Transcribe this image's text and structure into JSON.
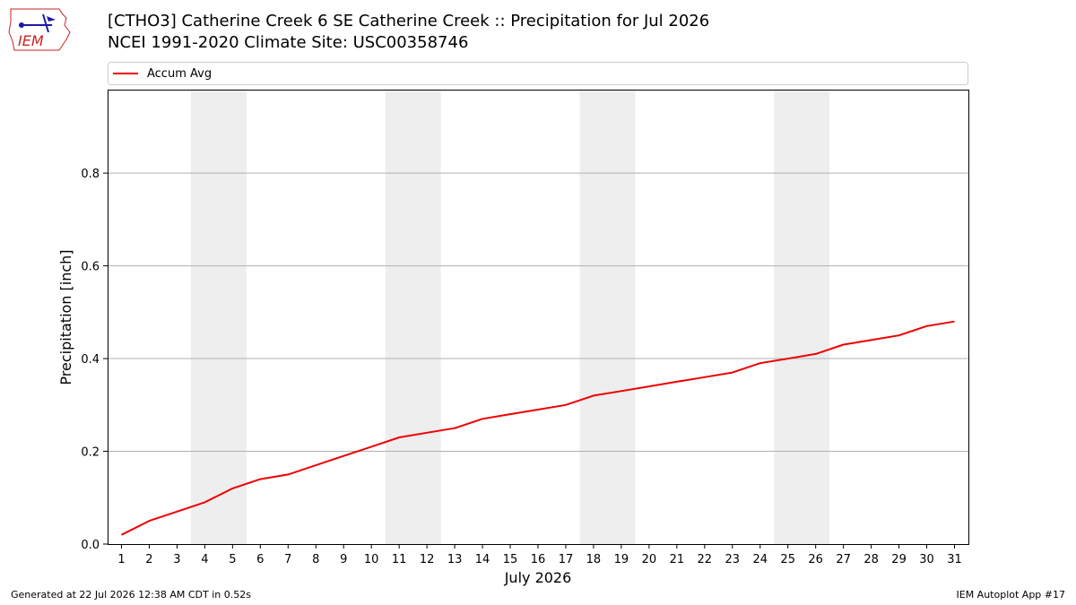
{
  "header": {
    "title_line1": "[CTHO3] Catherine Creek 6 SE Catherine Creek :: Precipitation for Jul 2026",
    "title_line2": "NCEI 1991-2020 Climate Site: USC00358746"
  },
  "logo": {
    "text": "IEM",
    "icon": "iem-weather-station-logo"
  },
  "footer": {
    "generated": "Generated at 22 Jul 2026 12:38 AM CDT in 0.52s",
    "app": "IEM Autoplot App #17"
  },
  "colors": {
    "series": "#ee0000",
    "weekend_band": "#eeeeee",
    "grid": "#b0b0b0",
    "logo": "#cc2222"
  },
  "chart_data": {
    "type": "line",
    "xlabel": "July 2026",
    "ylabel": "Precipitation [inch]",
    "x": [
      1,
      2,
      3,
      4,
      5,
      6,
      7,
      8,
      9,
      10,
      11,
      12,
      13,
      14,
      15,
      16,
      17,
      18,
      19,
      20,
      21,
      22,
      23,
      24,
      25,
      26,
      27,
      28,
      29,
      30,
      31
    ],
    "xlim": [
      0.5,
      31.5
    ],
    "ylim": [
      0,
      0.98
    ],
    "yticks": [
      0.0,
      0.2,
      0.4,
      0.6,
      0.8
    ],
    "ytick_labels": [
      "0.0",
      "0.2",
      "0.4",
      "0.6",
      "0.8"
    ],
    "grid": "horizontal",
    "legend_position": "top, above plot",
    "weekend_days": [
      4,
      5,
      11,
      12,
      18,
      19,
      25,
      26
    ],
    "series": [
      {
        "name": "Accum Avg",
        "color": "#ee0000",
        "values": [
          0.02,
          0.05,
          0.07,
          0.09,
          0.12,
          0.14,
          0.15,
          0.17,
          0.19,
          0.21,
          0.23,
          0.24,
          0.25,
          0.27,
          0.28,
          0.29,
          0.3,
          0.32,
          0.33,
          0.34,
          0.35,
          0.36,
          0.37,
          0.39,
          0.4,
          0.41,
          0.43,
          0.44,
          0.45,
          0.47,
          0.48
        ]
      }
    ]
  }
}
